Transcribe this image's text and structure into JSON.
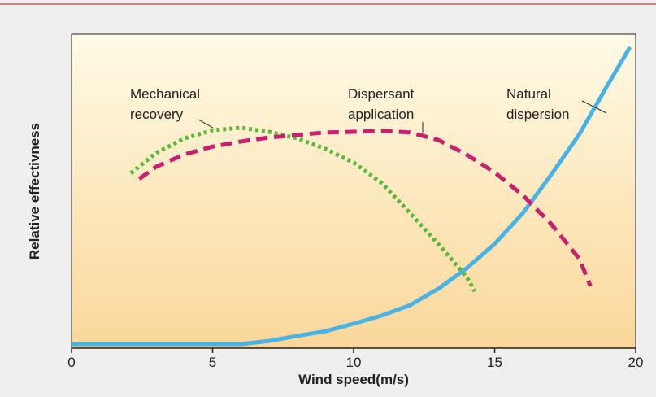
{
  "chart_data": {
    "type": "line",
    "xlabel": "Wind speed(m/s)",
    "ylabel": "Relative effectivness",
    "xlim": [
      0,
      20
    ],
    "xticks": [
      0,
      5,
      10,
      15,
      20
    ],
    "ylim": [
      0,
      100
    ],
    "series": [
      {
        "name": "Natural dispersion",
        "label_lines": [
          "Natural",
          "dispersion"
        ],
        "color": "#4ab3e6",
        "style": "solid",
        "x": [
          0,
          2,
          4,
          6,
          7,
          8,
          9,
          10,
          11,
          12,
          13,
          14,
          15,
          16,
          17,
          18,
          19,
          19.8
        ],
        "values": [
          1.3,
          1.3,
          1.3,
          1.3,
          2.3,
          3.9,
          5.4,
          7.8,
          10.4,
          13.7,
          18.9,
          25.4,
          33.2,
          43,
          55.2,
          68.1,
          83.7,
          95.9
        ]
      },
      {
        "name": "Mechanical recovery",
        "label_lines": [
          "Mechanical",
          "recovery"
        ],
        "color": "#5cb83a",
        "style": "dotted",
        "x": [
          2.1,
          3,
          4,
          5,
          6,
          7,
          8,
          9,
          10,
          11,
          12,
          13,
          14,
          14.3
        ],
        "values": [
          55.7,
          62.2,
          66.8,
          69.4,
          70.2,
          68.9,
          66.8,
          63.5,
          59.1,
          52.6,
          43,
          33.2,
          22.8,
          18.1
        ]
      },
      {
        "name": "Dispersant application",
        "label_lines": [
          "Dispersant",
          "application"
        ],
        "color": "#c8206e",
        "style": "dashed",
        "x": [
          2.4,
          3,
          4,
          5,
          6,
          7,
          8,
          9,
          10,
          11,
          12,
          13,
          14,
          15,
          16,
          17,
          18,
          18.4
        ],
        "values": [
          53.9,
          57.8,
          61.7,
          64.2,
          65.8,
          67.1,
          67.9,
          68.7,
          68.9,
          69.2,
          68.7,
          66.3,
          61.7,
          56,
          48.7,
          39.6,
          28.5,
          19.7
        ]
      }
    ]
  }
}
